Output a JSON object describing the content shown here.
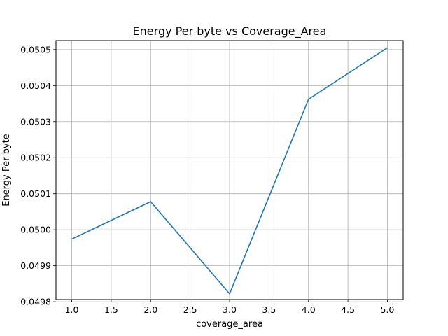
{
  "chart_data": {
    "type": "line",
    "title": "Energy Per byte vs Coverage_Area",
    "xlabel": "coverage_area",
    "ylabel": "Energy Per byte",
    "x": [
      1,
      2,
      3,
      4,
      5
    ],
    "series": [
      {
        "values": [
          0.049974,
          0.050078,
          0.049822,
          0.050362,
          0.050505
        ],
        "color": "#1f77b4"
      }
    ],
    "xlim": [
      0.8,
      5.2
    ],
    "ylim": [
      0.049806,
      0.050525
    ],
    "xticks": [
      "1.0",
      "1.5",
      "2.0",
      "2.5",
      "3.0",
      "3.5",
      "4.0",
      "4.5",
      "5.0"
    ],
    "yticks": [
      "0.0498",
      "0.0499",
      "0.0500",
      "0.0501",
      "0.0502",
      "0.0503",
      "0.0504",
      "0.0505"
    ],
    "grid": true,
    "legend": false
  }
}
